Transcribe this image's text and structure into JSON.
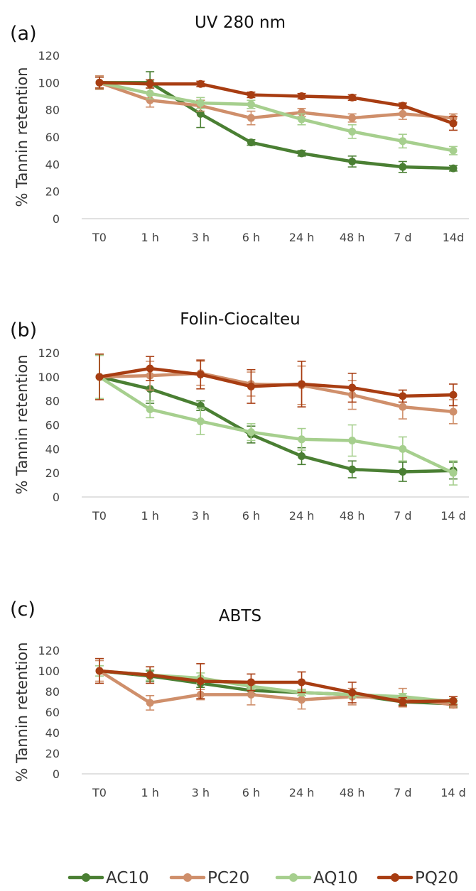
{
  "chart_data": [
    {
      "type": "line",
      "panel": "(a)",
      "title": "UV 280 nm",
      "ylabel": "% Tannin retention",
      "xlabel": "",
      "ylim": [
        0,
        120
      ],
      "yticks": [
        0,
        20,
        40,
        60,
        80,
        100,
        120
      ],
      "categories": [
        "T0",
        "1 h",
        "3 h",
        "6 h",
        "24 h",
        "48 h",
        "7 d",
        "14d"
      ],
      "series": [
        {
          "name": "AC10",
          "values": [
            100,
            100,
            77,
            56,
            48,
            42,
            38,
            37
          ],
          "errors": [
            5,
            8,
            10,
            2,
            2,
            4,
            4,
            2
          ]
        },
        {
          "name": "PC20",
          "values": [
            100,
            87,
            83,
            74,
            78,
            74,
            77,
            74
          ],
          "errors": [
            5,
            5,
            4,
            5,
            3,
            3,
            4,
            3
          ]
        },
        {
          "name": "AQ10",
          "values": [
            100,
            92,
            85,
            84,
            73,
            64,
            57,
            50
          ],
          "errors": [
            4,
            4,
            4,
            3,
            4,
            5,
            5,
            3
          ]
        },
        {
          "name": "PQ20",
          "values": [
            100,
            99,
            99,
            91,
            90,
            89,
            83,
            70
          ],
          "errors": [
            4,
            3,
            2,
            2,
            2,
            2,
            2,
            5
          ]
        }
      ]
    },
    {
      "type": "line",
      "panel": "(b)",
      "title": "Folin-Ciocalteu",
      "ylabel": "% Tannin retention",
      "xlabel": "",
      "ylim": [
        0,
        120
      ],
      "yticks": [
        0,
        20,
        40,
        60,
        80,
        100,
        120
      ],
      "categories": [
        "T0",
        "1 h",
        "3 h",
        "6 h",
        "24 h",
        "48 h",
        "7 d",
        "14 d"
      ],
      "series": [
        {
          "name": "AC10",
          "values": [
            100,
            90,
            76,
            52,
            34,
            23,
            21,
            22
          ],
          "errors": [
            18,
            12,
            4,
            7,
            7,
            7,
            8,
            7
          ]
        },
        {
          "name": "PC20",
          "values": [
            100,
            101,
            103,
            94,
            93,
            85,
            75,
            71
          ],
          "errors": [
            18,
            12,
            10,
            10,
            16,
            12,
            10,
            10
          ]
        },
        {
          "name": "AQ10",
          "values": [
            100,
            73,
            63,
            54,
            48,
            47,
            40,
            20
          ],
          "errors": [
            18,
            7,
            11,
            7,
            9,
            13,
            10,
            10
          ]
        },
        {
          "name": "PQ20",
          "values": [
            100,
            107,
            102,
            92,
            94,
            91,
            84,
            85
          ],
          "errors": [
            19,
            10,
            12,
            14,
            19,
            12,
            5,
            9
          ]
        }
      ]
    },
    {
      "type": "line",
      "panel": "(c)",
      "title": "ABTS",
      "ylabel": "% Tannin retention",
      "xlabel": "",
      "ylim": [
        0,
        120
      ],
      "yticks": [
        0,
        20,
        40,
        60,
        80,
        100,
        120
      ],
      "categories": [
        "T0",
        "1 h",
        "3 h",
        "6 h",
        "24 h",
        "48 h",
        "7 d",
        "14 d"
      ],
      "series": [
        {
          "name": "AC10",
          "values": [
            100,
            95,
            88,
            81,
            79,
            77,
            70,
            68
          ],
          "errors": [
            5,
            5,
            4,
            3,
            3,
            3,
            3,
            3
          ]
        },
        {
          "name": "PC20",
          "values": [
            100,
            69,
            77,
            77,
            72,
            75,
            74,
            67
          ],
          "errors": [
            10,
            7,
            5,
            10,
            9,
            8,
            9,
            3
          ]
        },
        {
          "name": "AQ10",
          "values": [
            100,
            96,
            93,
            85,
            79,
            77,
            75,
            70
          ],
          "errors": [
            5,
            5,
            5,
            3,
            3,
            3,
            3,
            3
          ]
        },
        {
          "name": "PQ20",
          "values": [
            100,
            96,
            90,
            89,
            89,
            79,
            70,
            71
          ],
          "errors": [
            12,
            8,
            17,
            8,
            10,
            10,
            4,
            4
          ]
        }
      ]
    }
  ],
  "series_colors": {
    "AC10": "#4a7f33",
    "PC20": "#cf8f6b",
    "AQ10": "#a6cf8e",
    "PQ20": "#a83d12"
  },
  "legend": {
    "placement": "bottom",
    "items": [
      "AC10",
      "PC20",
      "AQ10",
      "PQ20"
    ]
  },
  "grid": false
}
